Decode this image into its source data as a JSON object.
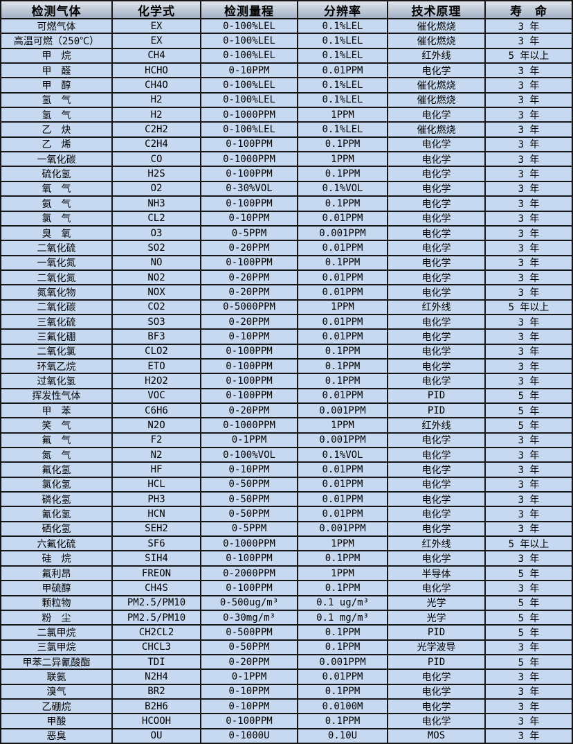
{
  "colors": {
    "row_background": "#c6d9f0",
    "header_gradient_top": "#dfe4eb",
    "header_gradient_bottom": "#a3b1c6",
    "border": "#161616",
    "text": "#000000"
  },
  "table": {
    "headers": [
      "检测气体",
      "化学式",
      "检测量程",
      "分辨率",
      "技术原理",
      "寿　命"
    ],
    "rows": [
      [
        "可燃气体",
        "EX",
        "0-100%LEL",
        "0.1%LEL",
        "催化燃烧",
        "3 年"
      ],
      [
        "高温可燃（250℃）",
        "EX",
        "0-100%LEL",
        "0.1%LEL",
        "催化燃烧",
        "3 年"
      ],
      [
        "甲　烷",
        "CH4",
        "0-100%LEL",
        "0.1%LEL",
        "红外线",
        "5 年以上"
      ],
      [
        "甲　醛",
        "HCHO",
        "0-10PPM",
        "0.01PPM",
        "电化学",
        "3 年"
      ],
      [
        "甲　醇",
        "CH4O",
        "0-100%LEL",
        "0.1%LEL",
        "催化燃烧",
        "3 年"
      ],
      [
        "氢　气",
        "H2",
        "0-100%LEL",
        "0.1%LEL",
        "催化燃烧",
        "3 年"
      ],
      [
        "氢　气",
        "H2",
        "0-1000PPM",
        "1PPM",
        "电化学",
        "3 年"
      ],
      [
        "乙　炔",
        "C2H2",
        "0-100%LEL",
        "0.1%LEL",
        "催化燃烧",
        "3 年"
      ],
      [
        "乙　烯",
        "C2H4",
        "0-100PPM",
        "0.1PPM",
        "电化学",
        "3 年"
      ],
      [
        "一氧化碳",
        "CO",
        "0-1000PPM",
        "1PPM",
        "电化学",
        "3 年"
      ],
      [
        "硫化氢",
        "H2S",
        "0-100PPM",
        "0.1PPM",
        "电化学",
        "3 年"
      ],
      [
        "氧　气",
        "O2",
        "0-30%VOL",
        "0.1%VOL",
        "电化学",
        "3 年"
      ],
      [
        "氨　气",
        "NH3",
        "0-100PPM",
        "0.1PPM",
        "电化学",
        "3 年"
      ],
      [
        "氯　气",
        "CL2",
        "0-10PPM",
        "0.01PPM",
        "电化学",
        "3 年"
      ],
      [
        "臭　氧",
        "O3",
        "0-5PPM",
        "0.001PPM",
        "电化学",
        "3 年"
      ],
      [
        "二氧化硫",
        "SO2",
        "0-20PPM",
        "0.01PPM",
        "电化学",
        "3 年"
      ],
      [
        "一氧化氮",
        "NO",
        "0-100PPM",
        "0.1PPM",
        "电化学",
        "3 年"
      ],
      [
        "二氧化氮",
        "NO2",
        "0-20PPM",
        "0.01PPM",
        "电化学",
        "3 年"
      ],
      [
        "氮氧化物",
        "NOX",
        "0-20PPM",
        "0.01PPM",
        "电化学",
        "3 年"
      ],
      [
        "二氧化碳",
        "CO2",
        "0-5000PPM",
        "1PPM",
        "红外线",
        "5 年以上"
      ],
      [
        "三氧化硫",
        "SO3",
        "0-20PPM",
        "0.01PPM",
        "电化学",
        "3 年"
      ],
      [
        "三氟化硼",
        "BF3",
        "0-10PPM",
        "0.01PPM",
        "电化学",
        "3 年"
      ],
      [
        "二氧化氯",
        "CLO2",
        "0-100PPM",
        "0.1PPM",
        "电化学",
        "3 年"
      ],
      [
        "环氧乙烷",
        "ETO",
        "0-100PPM",
        "0.1PPM",
        "电化学",
        "3 年"
      ],
      [
        "过氧化氢",
        "H2O2",
        "0-100PPM",
        "0.1PPM",
        "电化学",
        "3 年"
      ],
      [
        "挥发性气体",
        "VOC",
        "0-100PPM",
        "0.01PPM",
        "PID",
        "5 年"
      ],
      [
        "甲　苯",
        "C6H6",
        "0-20PPM",
        "0.001PPM",
        "PID",
        "5 年"
      ],
      [
        "笑　气",
        "N2O",
        "0-1000PPM",
        "1PPM",
        "红外线",
        "5 年"
      ],
      [
        "氟　气",
        "F2",
        "0-1PPM",
        "0.001PPM",
        "电化学",
        "3 年"
      ],
      [
        "氮　气",
        "N2",
        "0-100%VOL",
        "0.1%VOL",
        "电化学",
        "3 年"
      ],
      [
        "氟化氢",
        "HF",
        "0-10PPM",
        "0.01PPM",
        "电化学",
        "3 年"
      ],
      [
        "氯化氢",
        "HCL",
        "0-50PPM",
        "0.01PPM",
        "电化学",
        "3 年"
      ],
      [
        "磷化氢",
        "PH3",
        "0-50PPM",
        "0.01PPM",
        "电化学",
        "3 年"
      ],
      [
        "氰化氢",
        "HCN",
        "0-50PPM",
        "0.01PPM",
        "电化学",
        "3 年"
      ],
      [
        "硒化氢",
        "SEH2",
        "0-5PPM",
        "0.001PPM",
        "电化学",
        "3 年"
      ],
      [
        "六氟化硫",
        "SF6",
        "0-1000PPM",
        "1PPM",
        "红外线",
        "5 年以上"
      ],
      [
        "硅　烷",
        "SIH4",
        "0-100PPM",
        "0.1PPM",
        "电化学",
        "3 年"
      ],
      [
        "氟利昂",
        "FREON",
        "0-2000PPM",
        "1PPM",
        "半导体",
        "5 年"
      ],
      [
        "甲硫醇",
        "CH4S",
        "0-100PPM",
        "0.1PPM",
        "电化学",
        "3 年"
      ],
      [
        "颗粒物",
        "PM2.5/PM10",
        "0-500ug/m³",
        "0.1 ug/m³",
        "光学",
        "5 年"
      ],
      [
        "粉　尘",
        "PM2.5/PM10",
        "0-30mg/m³",
        "0.1 mg/m³",
        "光学",
        "5 年"
      ],
      [
        "二氯甲烷",
        "CH2CL2",
        "0-500PPM",
        "0.1PPM",
        "PID",
        "5 年"
      ],
      [
        "三氯甲烷",
        "CHCL3",
        "0-50PPM",
        "0.1PPM",
        "光学波导",
        "3 年"
      ],
      [
        "甲苯二异氰酸酯",
        "TDI",
        "0-20PPM",
        "0.001PPM",
        "PID",
        "5 年"
      ],
      [
        "联氨",
        "N2H4",
        "0-1PPM",
        "0.01PPM",
        "电化学",
        "3 年"
      ],
      [
        "溴气",
        "BR2",
        "0-10PPM",
        "0.1PPM",
        "电化学",
        "3 年"
      ],
      [
        "乙硼烷",
        "B2H6",
        "0-10PPM",
        "0.0100M",
        "电化学",
        "3 年"
      ],
      [
        "甲酸",
        "HCOOH",
        "0-100PPM",
        "0.1PPM",
        "电化学",
        "3 年"
      ],
      [
        "恶臭",
        "OU",
        "0-1000U",
        "0.10U",
        "MOS",
        "3 年"
      ]
    ]
  }
}
